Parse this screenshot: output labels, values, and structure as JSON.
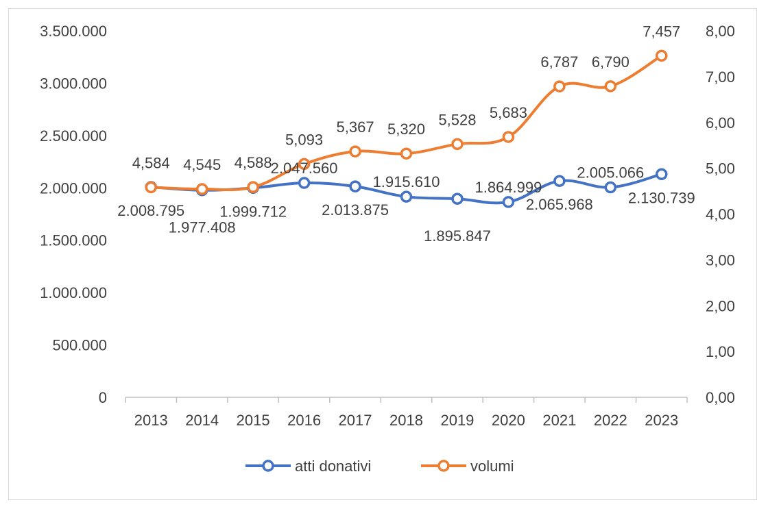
{
  "chart_data": {
    "type": "line",
    "categories": [
      "2013",
      "2014",
      "2015",
      "2016",
      "2017",
      "2018",
      "2019",
      "2020",
      "2021",
      "2022",
      "2023"
    ],
    "y_left": {
      "ticks": [
        "0",
        "500.000",
        "1.000.000",
        "1.500.000",
        "2.000.000",
        "2.500.000",
        "3.000.000",
        "3.500.000"
      ],
      "range": [
        0,
        3500000
      ]
    },
    "y_right": {
      "ticks": [
        "0,00",
        "1,00",
        "2,00",
        "3,00",
        "4,00",
        "5,00",
        "6,00",
        "7,00",
        "8,00"
      ],
      "range": [
        0,
        8
      ]
    },
    "series": [
      {
        "name": "atti donativi",
        "axis": "left",
        "color": "#4472c4",
        "values": [
          2008795,
          1977408,
          1999712,
          2047560,
          2013875,
          1915610,
          1895847,
          1864999,
          2065968,
          2005066,
          2130739
        ],
        "labels": [
          "2.008.795",
          "1.977.408",
          "1.999.712",
          "2.047.560",
          "2.013.875",
          "1.915.610",
          "1.895.847",
          "1.864.999",
          "2.065.968",
          "2.005.066",
          "2.130.739"
        ]
      },
      {
        "name": "volumi",
        "axis": "right",
        "color": "#ed7d31",
        "values": [
          4.584,
          4.545,
          4.588,
          5.093,
          5.367,
          5.32,
          5.528,
          5.683,
          6.787,
          6.79,
          7.457
        ],
        "labels": [
          "4,584",
          "4,545",
          "4,588",
          "5,093",
          "5,367",
          "5,320",
          "5,528",
          "5,683",
          "6,787",
          "6,790",
          "7,457"
        ]
      }
    ],
    "legend_position": "bottom",
    "grid": false
  }
}
